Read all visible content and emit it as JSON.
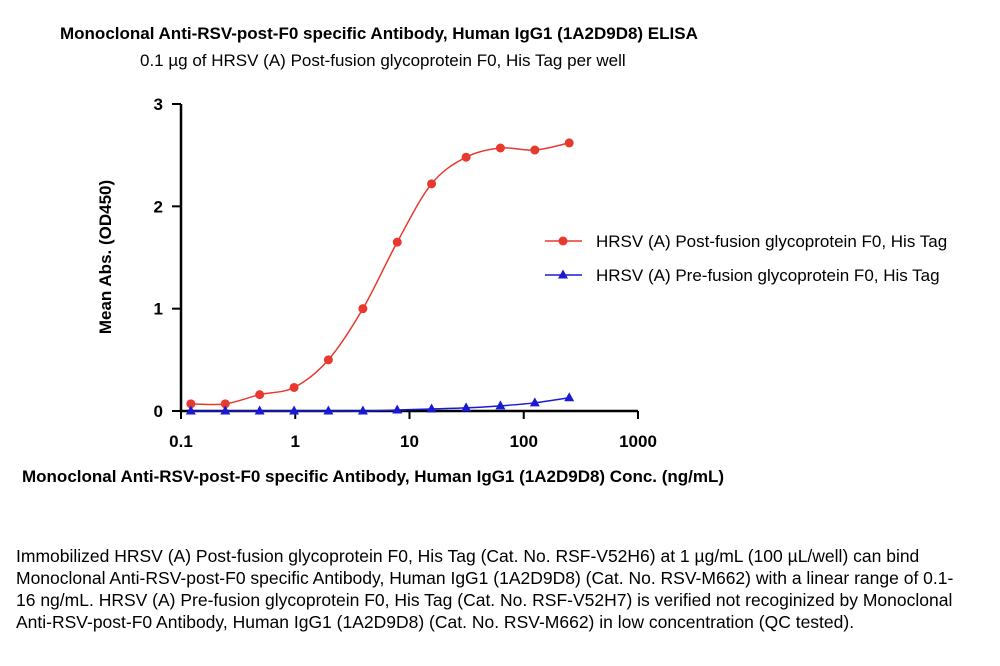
{
  "chart_data": {
    "type": "line",
    "title": "Monoclonal Anti-RSV-post-F0 specific Antibody, Human IgG1 (1A2D9D8) ELISA",
    "subtitle": "0.1 µg of HRSV (A) Post-fusion glycoprotein F0, His Tag per well",
    "xlabel": "Monoclonal Anti-RSV-post-F0 specific Antibody, Human IgG1 (1A2D9D8) Conc. (ng/mL)",
    "ylabel": "Mean Abs. (OD450)",
    "x_scale": "log",
    "xlim": [
      0.1,
      1000
    ],
    "ylim": [
      0,
      3
    ],
    "x_ticks": [
      0.1,
      1,
      10,
      100,
      1000
    ],
    "x_tick_labels": [
      "0.1",
      "1",
      "10",
      "100",
      "1000"
    ],
    "y_ticks": [
      0,
      1,
      2,
      3
    ],
    "y_tick_labels": [
      "0",
      "1",
      "2",
      "3"
    ],
    "grid": false,
    "legend_position": "right",
    "series": [
      {
        "name": "HRSV (A) Post-fusion glycoprotein F0, His Tag",
        "color": "#e8392f",
        "marker": "circle",
        "x": [
          0.122,
          0.244,
          0.488,
          0.977,
          1.95,
          3.91,
          7.81,
          15.6,
          31.3,
          62.5,
          125,
          250
        ],
        "y": [
          0.07,
          0.07,
          0.16,
          0.23,
          0.5,
          1.0,
          1.65,
          2.22,
          2.48,
          2.57,
          2.55,
          2.62
        ]
      },
      {
        "name": "HRSV (A) Pre-fusion glycoprotein F0, His Tag",
        "color": "#1a1ad6",
        "marker": "triangle",
        "x": [
          0.122,
          0.244,
          0.488,
          0.977,
          1.95,
          3.91,
          7.81,
          15.6,
          31.3,
          62.5,
          125,
          250
        ],
        "y": [
          0.0,
          0.0,
          0.0,
          0.0,
          0.0,
          0.0,
          0.01,
          0.02,
          0.03,
          0.05,
          0.08,
          0.13
        ]
      }
    ]
  },
  "caption": "Immobilized HRSV (A) Post-fusion glycoprotein F0, His Tag (Cat. No. RSF-V52H6) at 1 µg/mL (100 µL/well) can bind Monoclonal Anti-RSV-post-F0 specific Antibody, Human IgG1 (1A2D9D8) (Cat. No. RSV-M662) with a linear range of 0.1-16 ng/mL. HRSV (A) Pre-fusion glycoprotein F0, His Tag (Cat. No. RSF-V52H7) is verified not recoginized by Monoclonal Anti-RSV-post-F0 Antibody, Human IgG1 (1A2D9D8) (Cat. No. RSV-M662) in low concentration (QC tested)."
}
